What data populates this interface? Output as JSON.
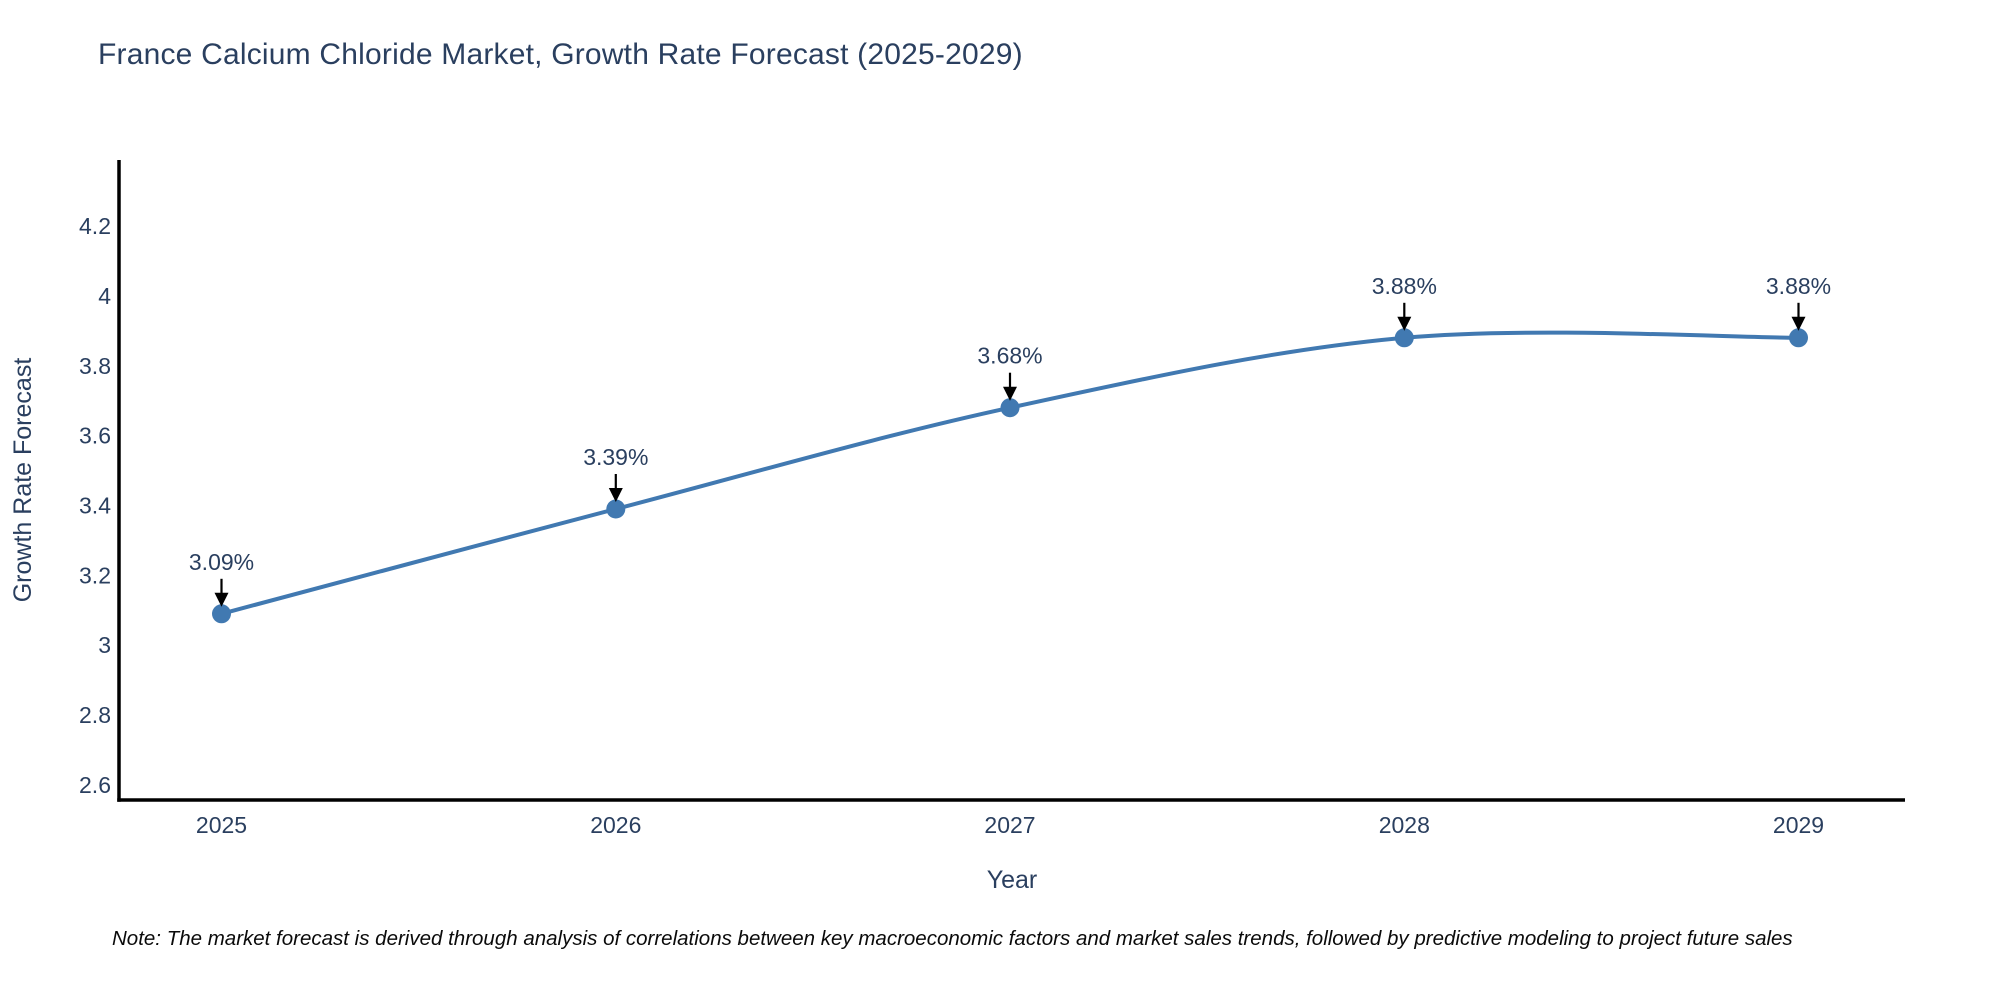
{
  "note": "Note: The market forecast is derived through analysis of correlations between key macroeconomic factors and market sales trends, followed by predictive modeling to project future sales",
  "chart_data": {
    "type": "line",
    "title": "France Calcium Chloride Market, Growth Rate Forecast (2025-2029)",
    "xlabel": "Year",
    "ylabel": "Growth Rate Forecast",
    "x": [
      2025,
      2026,
      2027,
      2028,
      2029
    ],
    "series": [
      {
        "name": "Growth Rate Forecast",
        "values": [
          3.09,
          3.39,
          3.68,
          3.88,
          3.88
        ]
      }
    ],
    "point_labels": [
      "3.09%",
      "3.39%",
      "3.68%",
      "3.88%",
      "3.88%"
    ],
    "line_shape": "spline",
    "grid": false,
    "legend": "none",
    "xticks": [
      2025,
      2026,
      2027,
      2028,
      2029
    ],
    "yticks": [
      2.6,
      2.8,
      3,
      3.2,
      3.4,
      3.6,
      3.8,
      4,
      4.2
    ],
    "xlim": [
      2024.74,
      2029.27
    ],
    "ylim": [
      2.557,
      4.389
    ],
    "colors": {
      "line": "#4179b1",
      "marker": "#4179b1",
      "title_text": "#2a3f5f",
      "tick_text": "#2a3f5f",
      "axis_line": "#000000",
      "annotation_text": "#2a3f5f",
      "annotation_arrow": "#000000",
      "background": "#ffffff"
    }
  }
}
